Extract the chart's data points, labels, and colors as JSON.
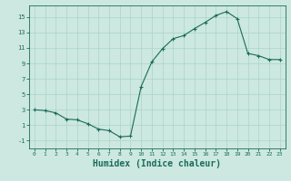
{
  "x": [
    0,
    1,
    2,
    3,
    4,
    5,
    6,
    7,
    8,
    9,
    10,
    11,
    12,
    13,
    14,
    15,
    16,
    17,
    18,
    19,
    20,
    21,
    22,
    23
  ],
  "y": [
    3.0,
    2.9,
    2.6,
    1.8,
    1.7,
    1.2,
    0.5,
    0.3,
    -0.5,
    -0.4,
    6.0,
    9.2,
    10.9,
    12.2,
    12.6,
    13.5,
    14.3,
    15.2,
    15.7,
    14.8,
    10.3,
    10.0,
    9.5,
    9.5
  ],
  "line_color": "#1a6b5a",
  "marker": "+",
  "marker_color": "#1a6b5a",
  "bg_color": "#cce8e0",
  "grid_color": "#aad4c8",
  "tick_color": "#1a6b5a",
  "xlabel": "Humidex (Indice chaleur)",
  "xlabel_fontsize": 7,
  "yticks": [
    -1,
    1,
    3,
    5,
    7,
    9,
    11,
    13,
    15
  ],
  "xticks": [
    0,
    1,
    2,
    3,
    4,
    5,
    6,
    7,
    8,
    9,
    10,
    11,
    12,
    13,
    14,
    15,
    16,
    17,
    18,
    19,
    20,
    21,
    22,
    23
  ],
  "ylim": [
    -2.0,
    16.5
  ],
  "xlim": [
    -0.5,
    23.5
  ]
}
